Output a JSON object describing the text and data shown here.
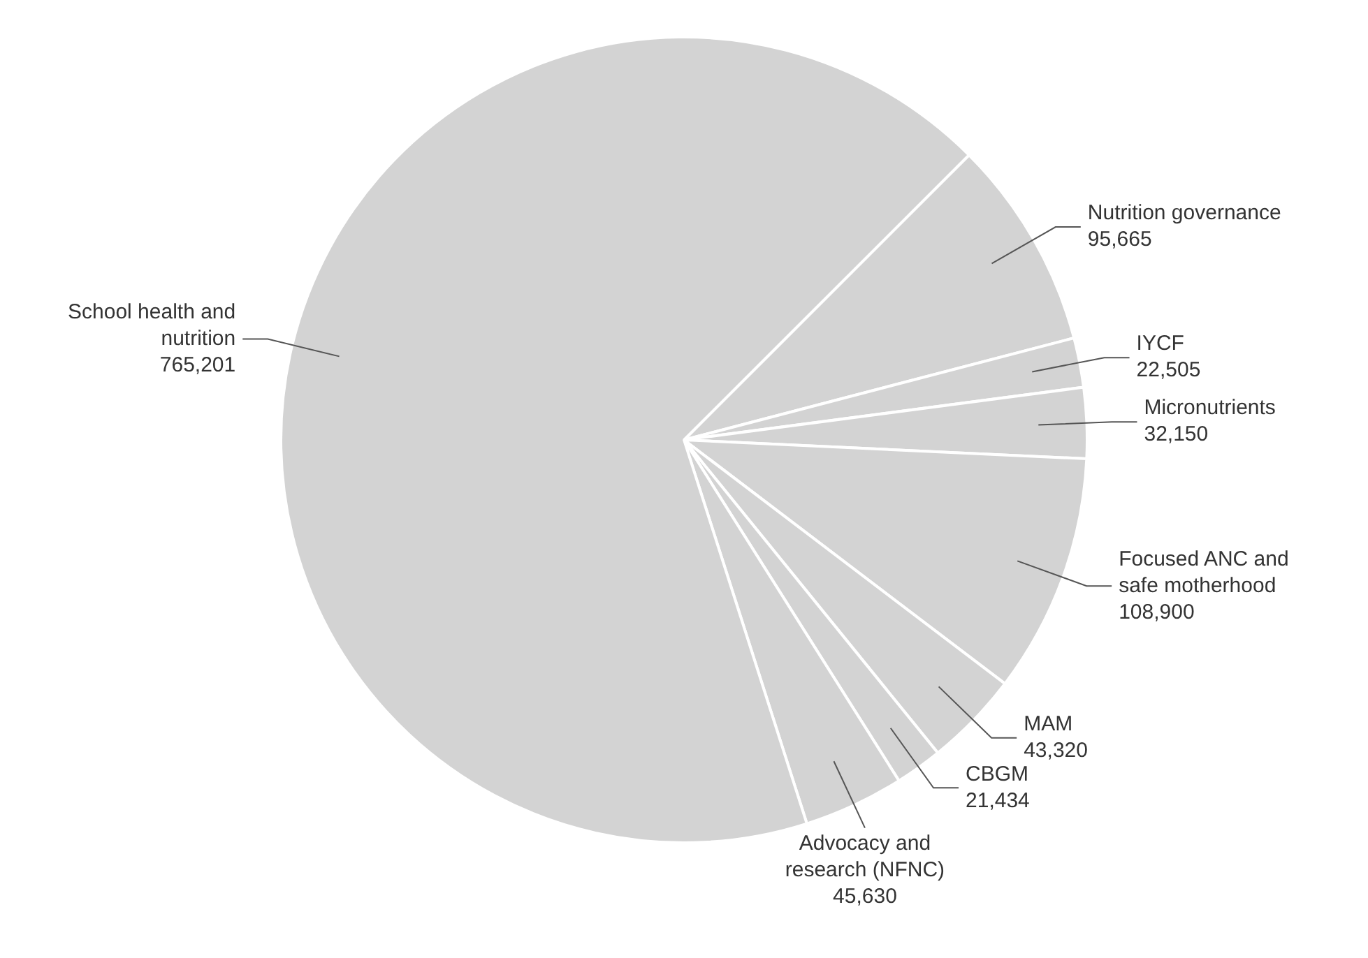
{
  "chart_data": {
    "type": "pie",
    "categories": [
      "Nutrition governance",
      "IYCF",
      "Micronutrients",
      "Focused ANC and safe motherhood",
      "MAM",
      "CBGM",
      "Advocacy and research (NFNC)",
      "School health and nutrition"
    ],
    "values": [
      95665,
      22505,
      32150,
      108900,
      43320,
      21434,
      45630,
      765201
    ],
    "colors": [
      "#d3d3d3",
      "#d3d3d3",
      "#d3d3d3",
      "#d3d3d3",
      "#d3d3d3",
      "#d3d3d3",
      "#d3d3d3",
      "#d3d3d3"
    ],
    "value_labels": [
      "95,665",
      "22,505",
      "32,150",
      "108,900",
      "43,320",
      "21,434",
      "45,630",
      "765,201"
    ],
    "legend": false
  }
}
